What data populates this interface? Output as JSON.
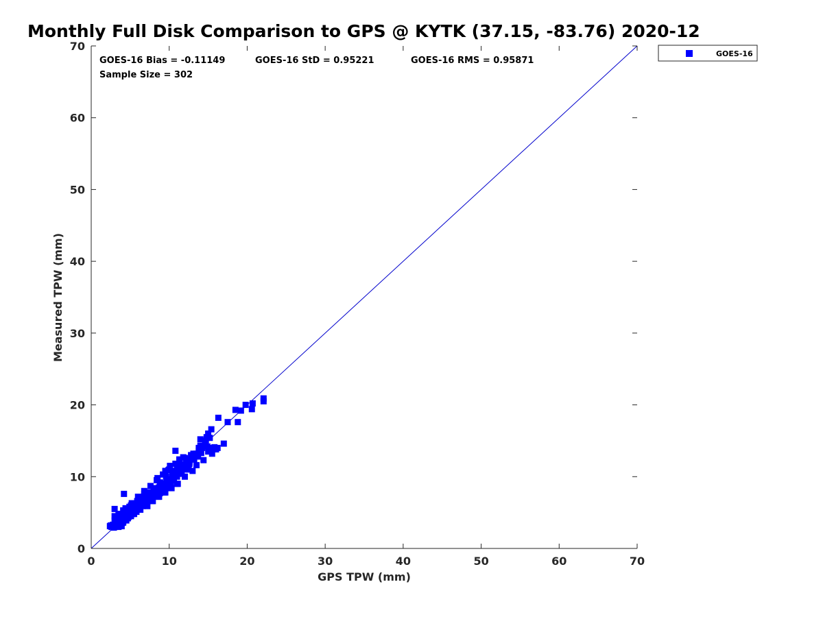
{
  "chart_data": {
    "type": "scatter",
    "title": "Monthly Full Disk Comparison to GPS @ KYTK (37.15, -83.76) 2020-12",
    "xlabel": "GPS TPW (mm)",
    "ylabel": "Measured TPW (mm)",
    "xlim": [
      0,
      70
    ],
    "ylim": [
      0,
      70
    ],
    "xticks": [
      "0",
      "10",
      "20",
      "30",
      "40",
      "50",
      "60",
      "70"
    ],
    "yticks": [
      "0",
      "10",
      "20",
      "30",
      "40",
      "50",
      "60",
      "70"
    ],
    "grid": false,
    "legend": {
      "placement": "outside-top-right",
      "entries": [
        "GOES-16"
      ]
    },
    "annotations": {
      "bias": "GOES-16 Bias = -0.11149",
      "std": "GOES-16 StD = 0.95221",
      "rms": "GOES-16 RMS = 0.95871",
      "sample": "Sample Size = 302"
    },
    "reference_line": {
      "from": [
        0,
        0
      ],
      "to": [
        70,
        70
      ],
      "color": "#0000cc"
    },
    "series": [
      {
        "name": "GOES-16",
        "color": "#0000ff",
        "marker": "square",
        "x": [
          2.4,
          2.7,
          2.8,
          3.0,
          3.1,
          3.2,
          3.3,
          3.4,
          3.5,
          3.6,
          3.7,
          3.8,
          3.9,
          4.0,
          4.1,
          4.2,
          4.3,
          4.5,
          4.6,
          4.8,
          5.0,
          5.2,
          5.3,
          5.5,
          5.6,
          5.8,
          6.0,
          6.1,
          6.3,
          6.5,
          6.6,
          6.8,
          7.0,
          7.1,
          7.3,
          7.5,
          7.6,
          7.8,
          8.0,
          8.2,
          8.3,
          8.5,
          8.7,
          8.8,
          9.0,
          9.2,
          9.4,
          9.5,
          9.7,
          9.9,
          10.0,
          10.2,
          10.4,
          10.6,
          10.8,
          11.0,
          11.2,
          11.4,
          11.6,
          11.8,
          12.0,
          12.3,
          12.6,
          12.9,
          13.2,
          13.5,
          13.8,
          14.2,
          14.6,
          15.0,
          15.4,
          15.8,
          16.2,
          17.0,
          17.5,
          3.0,
          3.3,
          3.6,
          3.9,
          4.2,
          4.6,
          5.0,
          5.4,
          5.8,
          6.2,
          6.6,
          7.0,
          7.4,
          7.8,
          8.2,
          8.6,
          9.0,
          9.4,
          9.8,
          10.2,
          10.6,
          11.0,
          11.5,
          12.0,
          12.5,
          13.0,
          13.5,
          2.9,
          3.2,
          3.5,
          3.8,
          4.1,
          4.4,
          4.7,
          5.1,
          5.5,
          5.9,
          6.3,
          6.7,
          7.1,
          7.5,
          7.9,
          8.3,
          8.7,
          9.1,
          9.5,
          9.9,
          10.3,
          10.7,
          11.1,
          11.6,
          12.1,
          12.6,
          13.1,
          4.0,
          4.3,
          4.7,
          5.3,
          5.9,
          6.4,
          6.9,
          7.5,
          8.1,
          8.6,
          9.2,
          9.7,
          10.4,
          10.9,
          11.5,
          12.2,
          13.0,
          3.1,
          3.4,
          3.7,
          4.4,
          5.0,
          5.7,
          6.3,
          7.0,
          7.7,
          8.4,
          9.1,
          9.8,
          10.5,
          11.2,
          11.9,
          12.7,
          13.4,
          3.0,
          3.5,
          4.1,
          4.9,
          5.6,
          6.4,
          7.2,
          8.0,
          8.8,
          9.6,
          10.4,
          11.3,
          12.2,
          13.1,
          14.0,
          2.6,
          2.8,
          3.2,
          3.6,
          4.0,
          4.4,
          4.8,
          5.2,
          5.6,
          6.0,
          6.5,
          7.0,
          7.5,
          8.0,
          8.5,
          9.0,
          9.5,
          10.0,
          10.5,
          11.0,
          11.6,
          12.2,
          12.8,
          13.4,
          14.0,
          3.9,
          4.5,
          5.1,
          5.8,
          6.6,
          7.4,
          8.2,
          9.0,
          9.8,
          10.6,
          11.4,
          12.3,
          13.2,
          14.1,
          15.0,
          3.0,
          3.7,
          4.4,
          5.2,
          6.0,
          6.8,
          7.6,
          8.4,
          9.2,
          10.0,
          10.8,
          11.8,
          12.8,
          13.8,
          14.8,
          15.5,
          16.0,
          15.2,
          14.7,
          14.0,
          15.4,
          13.8,
          12.5,
          11.0,
          10.8,
          10.6,
          9.9,
          9.5,
          8.8,
          8.5,
          7.2,
          6.9,
          4.2,
          3.0,
          16.3,
          18.8,
          19.2,
          19.8,
          20.6,
          20.7,
          22.1,
          22.1,
          18.5,
          3.3,
          3.8,
          4.6,
          5.4,
          6.2,
          7.1,
          8.0,
          8.9,
          9.9,
          10.8,
          11.7,
          12.6,
          13.5,
          2.5,
          3.6,
          4.8,
          6.1,
          7.3,
          8.6,
          9.8,
          11.1,
          12.4,
          13.7,
          14.9,
          6.8,
          7.7,
          8.9,
          10.1,
          11.3,
          12.0,
          12.9,
          14.4
        ],
        "y": [
          3.1,
          3.0,
          3.3,
          3.0,
          3.5,
          3.2,
          3.8,
          3.6,
          3.1,
          4.0,
          3.4,
          4.3,
          3.9,
          4.6,
          3.7,
          4.8,
          4.2,
          4.4,
          5.0,
          4.6,
          5.3,
          5.0,
          5.6,
          5.2,
          5.9,
          5.5,
          6.2,
          5.7,
          6.5,
          6.1,
          6.8,
          6.3,
          7.1,
          6.6,
          7.0,
          7.4,
          6.9,
          7.6,
          7.9,
          7.4,
          8.2,
          7.7,
          8.5,
          8.0,
          8.7,
          8.3,
          9.0,
          8.6,
          9.3,
          8.9,
          9.6,
          9.2,
          9.9,
          9.5,
          10.2,
          10.0,
          10.5,
          10.8,
          11.0,
          11.3,
          11.6,
          11.9,
          12.2,
          12.5,
          12.9,
          13.2,
          13.6,
          14.0,
          14.4,
          13.5,
          14.0,
          14.1,
          14.0,
          14.6,
          17.6,
          3.9,
          3.4,
          4.5,
          3.5,
          5.0,
          4.3,
          5.6,
          4.9,
          6.2,
          5.4,
          6.8,
          6.0,
          7.4,
          6.6,
          8.0,
          7.2,
          8.6,
          7.8,
          9.2,
          8.4,
          9.8,
          9.0,
          10.4,
          10.0,
          11.0,
          10.8,
          11.6,
          2.9,
          4.2,
          3.0,
          4.8,
          3.6,
          5.4,
          4.2,
          6.0,
          4.8,
          6.6,
          5.4,
          7.2,
          6.0,
          7.8,
          6.6,
          8.4,
          7.2,
          9.0,
          7.8,
          9.6,
          8.4,
          10.2,
          9.0,
          10.8,
          11.0,
          11.8,
          12.4,
          3.6,
          4.0,
          4.4,
          4.8,
          5.4,
          6.0,
          6.6,
          7.2,
          7.8,
          8.4,
          9.0,
          9.6,
          10.2,
          10.8,
          11.4,
          12.0,
          12.7,
          3.5,
          3.2,
          4.0,
          4.2,
          4.9,
          5.6,
          6.1,
          6.8,
          7.5,
          8.2,
          8.9,
          9.6,
          10.3,
          11.0,
          11.7,
          12.4,
          13.0,
          4.5,
          4.8,
          5.3,
          5.8,
          6.3,
          7.0,
          7.7,
          8.4,
          9.2,
          10.0,
          10.8,
          11.6,
          12.4,
          13.2,
          14.3,
          3.0,
          3.3,
          3.1,
          3.4,
          3.6,
          4.0,
          4.4,
          4.8,
          5.2,
          5.7,
          6.1,
          6.6,
          7.1,
          7.6,
          8.1,
          8.6,
          9.1,
          9.6,
          10.1,
          10.6,
          11.2,
          11.8,
          12.4,
          12.9,
          13.5,
          3.1,
          3.9,
          4.5,
          5.1,
          5.9,
          6.7,
          7.5,
          8.3,
          9.1,
          9.9,
          10.7,
          11.5,
          12.4,
          13.3,
          16.0,
          5.5,
          4.5,
          5.6,
          6.3,
          7.2,
          8.0,
          8.7,
          9.5,
          10.3,
          11.0,
          11.8,
          12.7,
          13.0,
          14.0,
          15.5,
          13.2,
          13.8,
          15.4,
          15.0,
          15.2,
          16.6,
          13.9,
          11.9,
          11.2,
          13.6,
          10.2,
          10.9,
          10.8,
          7.7,
          9.8,
          5.9,
          7.2,
          7.6,
          3.3,
          18.2,
          17.6,
          19.2,
          20.0,
          19.4,
          20.2,
          20.5,
          20.9,
          19.3,
          3.6,
          3.7,
          4.2,
          5.0,
          5.8,
          6.7,
          7.6,
          8.5,
          9.4,
          10.3,
          11.2,
          12.1,
          13.0,
          3.2,
          3.1,
          4.6,
          5.8,
          6.9,
          8.1,
          9.2,
          10.4,
          11.6,
          12.8,
          14.2,
          7.6,
          7.3,
          8.5,
          11.5,
          12.4,
          12.6,
          12.8,
          12.3
        ]
      }
    ]
  }
}
